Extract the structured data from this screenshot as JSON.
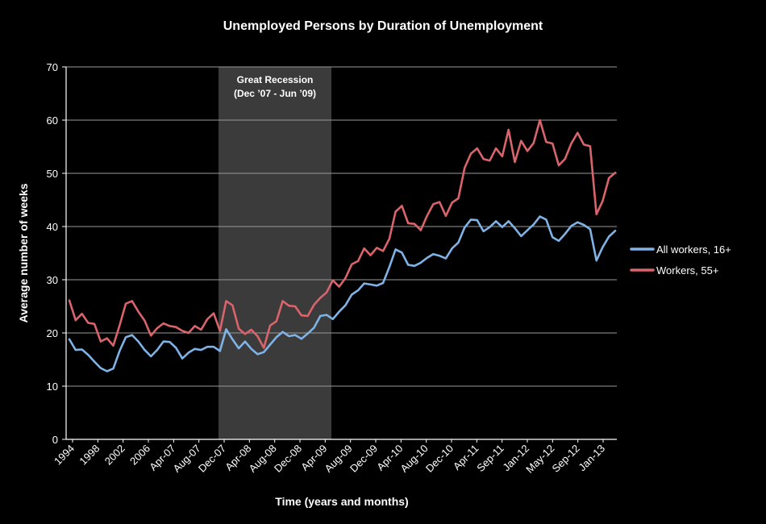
{
  "chart_data": {
    "type": "line",
    "title": "Unemployed Persons by Duration of Unemployment",
    "xlabel": "Time (years and months)",
    "ylabel": "Average number of weeks",
    "ylim": [
      0,
      70
    ],
    "yticks": [
      0,
      10,
      20,
      30,
      40,
      50,
      60,
      70
    ],
    "grid": "horizontal",
    "legend_position": "right",
    "x_tick_labels": [
      "1994",
      "1998",
      "2002",
      "2006",
      "Apr-07",
      "Aug-07",
      "Dec-07",
      "Apr-08",
      "Aug-08",
      "Dec-08",
      "Apr-09",
      "Aug-09",
      "Dec-09",
      "Apr-10",
      "Aug-10",
      "Dec-10",
      "Apr-11",
      "Sep-11",
      "Jan-12",
      "May-12",
      "Sep-12",
      "Jan-13"
    ],
    "shaded_region": {
      "label_line1": "Great Recession",
      "label_line2": "(Dec ’07 - Jun ’09)",
      "start_label": "Dec-07",
      "end_label": "Jun-09"
    },
    "series": [
      {
        "name": "All workers, 16+",
        "color": "#7fb3e6",
        "values": [
          18.8,
          16.8,
          16.9,
          15.9,
          14.6,
          13.4,
          12.8,
          13.3,
          16.6,
          19.2,
          19.6,
          18.4,
          16.8,
          15.6,
          16.8,
          18.4,
          18.3,
          17.2,
          15.2,
          16.3,
          17.0,
          16.8,
          17.4,
          17.4,
          16.6,
          20.7,
          18.8,
          17.1,
          18.4,
          17.0,
          16.0,
          16.4,
          17.8,
          19.2,
          20.2,
          19.4,
          19.6,
          18.9,
          19.9,
          21.0,
          23.2,
          23.4,
          22.6,
          24.0,
          25.2,
          27.2,
          28.0,
          29.3,
          29.1,
          28.9,
          29.4,
          32.4,
          35.7,
          35.1,
          32.8,
          32.6,
          33.2,
          34.1,
          34.8,
          34.5,
          34.0,
          35.9,
          37.0,
          39.8,
          41.3,
          41.2,
          39.1,
          39.9,
          41.0,
          39.9,
          41.0,
          39.7,
          38.2,
          39.3,
          40.4,
          41.9,
          41.3,
          38.0,
          37.3,
          38.6,
          40.1,
          40.8,
          40.3,
          39.5,
          33.6,
          36.1,
          38.1,
          39.2
        ]
      },
      {
        "name": "Workers, 55+",
        "color": "#d9646b",
        "values": [
          26.1,
          22.4,
          23.6,
          21.9,
          21.7,
          18.4,
          19.0,
          17.6,
          21.4,
          25.5,
          26.0,
          24.0,
          22.3,
          19.5,
          20.9,
          21.8,
          21.3,
          21.1,
          20.4,
          20.0,
          21.3,
          20.6,
          22.6,
          23.7,
          20.4,
          26.0,
          25.2,
          20.8,
          19.8,
          20.6,
          19.4,
          17.2,
          21.4,
          22.2,
          26.0,
          25.1,
          25.0,
          23.3,
          23.2,
          25.3,
          26.6,
          27.6,
          29.9,
          28.7,
          30.3,
          32.9,
          33.5,
          35.9,
          34.6,
          36.0,
          35.4,
          37.7,
          42.8,
          43.9,
          40.6,
          40.5,
          39.3,
          42.0,
          44.2,
          44.6,
          42.0,
          44.5,
          45.3,
          51.0,
          53.7,
          54.7,
          52.7,
          52.4,
          54.7,
          53.2,
          58.2,
          52.1,
          56.1,
          54.2,
          55.7,
          60.0,
          55.9,
          55.6,
          51.5,
          52.7,
          55.6,
          57.6,
          55.4,
          55.1,
          42.3,
          44.8,
          49.1,
          50.1
        ]
      }
    ]
  }
}
